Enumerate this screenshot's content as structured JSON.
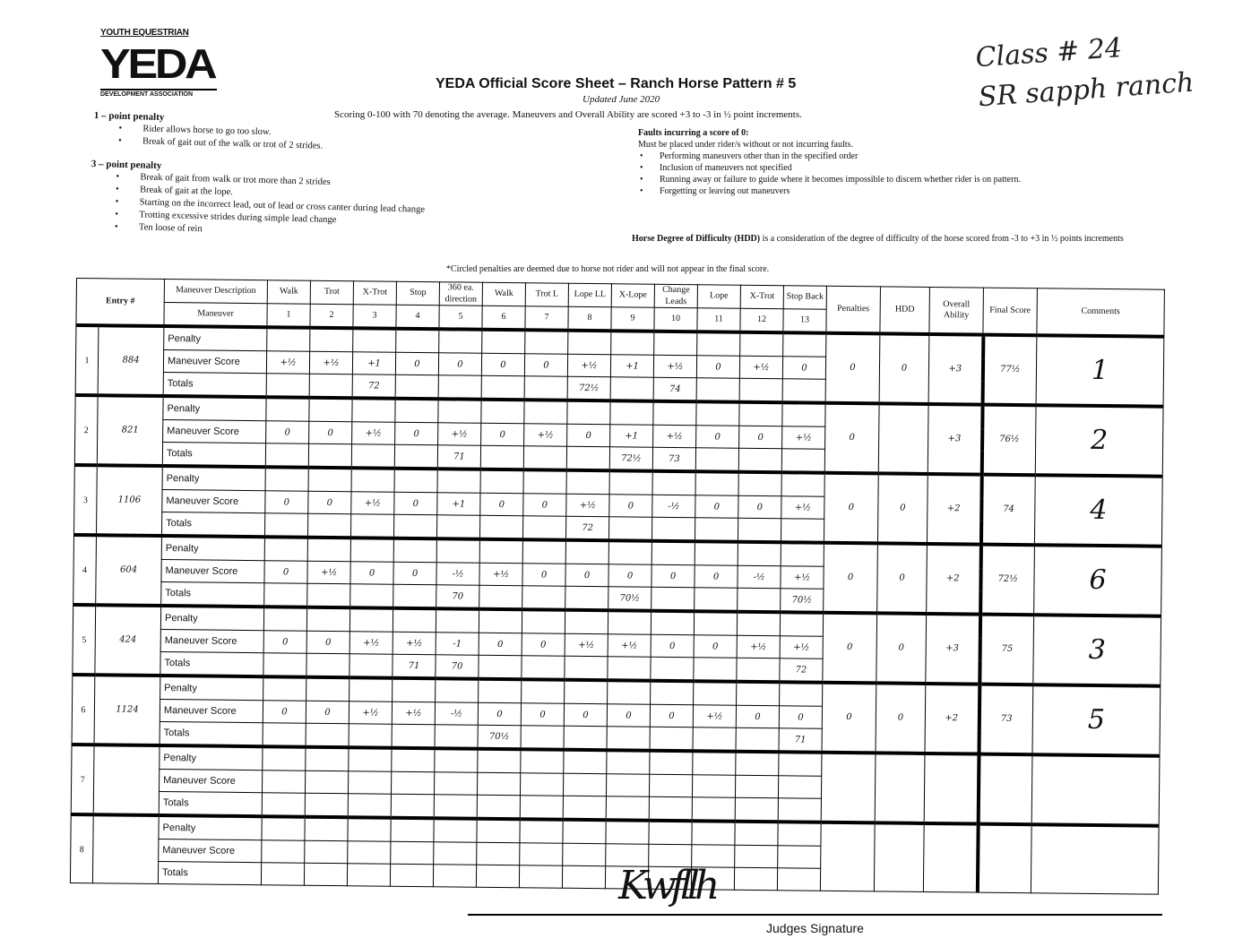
{
  "logo": {
    "top": "YOUTH EQUESTRIAN",
    "big": "YEDA",
    "bottom": "DEVELOPMENT ASSOCIATION"
  },
  "header": {
    "title": "YEDA Official Score Sheet – Ranch Horse Pattern # 5",
    "updated": "Updated June 2020",
    "scoring": "Scoring 0-100 with 70 denoting the average. Maneuvers and Overall Ability are scored +3 to -3 in ½ point increments."
  },
  "handwritten_note": {
    "line1": "Class # 24",
    "line2": "SR sapph ranch"
  },
  "penalties": {
    "one_point": {
      "heading": "1 – point penalty",
      "items": [
        "Rider allows horse to go too slow.",
        "Break of gait out of the walk or trot of 2 strides."
      ]
    },
    "three_point": {
      "heading": "3 – point penalty",
      "items": [
        "Break of gait from walk or trot more than 2 strides",
        "Break of gait at the lope.",
        "Starting on the incorrect lead, out of lead or cross canter during lead change",
        "Trotting excessive strides during simple lead change",
        "Ten loose of rein"
      ]
    }
  },
  "faults": {
    "heading": "Faults incurring a score of 0:",
    "sub": "Must be placed under rider/s without or not incurring faults.",
    "items": [
      "Performing maneuvers other than in the specified order",
      "Inclusion of maneuvers not specified",
      "Running away or failure to guide where it becomes impossible to discern whether rider is on pattern.",
      "Forgetting or leaving out maneuvers"
    ]
  },
  "hdd_note": {
    "bold": "Horse Degree of Difficulty (HDD)",
    "text": " is a consideration of the degree of difficulty of the horse scored from -3 to +3 in ½ points increments"
  },
  "circled_note": "*Circled penalties are deemed due to horse not rider and will not appear in the final score.",
  "table": {
    "entry_header": "Entry #",
    "desc_header": "Maneuver Description",
    "maneuver_header": "Maneuver",
    "maneuvers": [
      {
        "name": "Walk",
        "num": "1"
      },
      {
        "name": "Trot",
        "num": "2"
      },
      {
        "name": "X-Trot",
        "num": "3"
      },
      {
        "name": "Stop",
        "num": "4"
      },
      {
        "name": "360 ea. direction",
        "num": "5"
      },
      {
        "name": "Walk",
        "num": "6"
      },
      {
        "name": "Trot L",
        "num": "7"
      },
      {
        "name": "Lope LL",
        "num": "8"
      },
      {
        "name": "X-Lope",
        "num": "9"
      },
      {
        "name": "Change Leads",
        "num": "10"
      },
      {
        "name": "Lope",
        "num": "11"
      },
      {
        "name": "X-Trot",
        "num": "12"
      },
      {
        "name": "Stop Back",
        "num": "13"
      }
    ],
    "penalties_header": "Penalties",
    "hdd_header": "HDD",
    "overall_header": "Overall Ability",
    "final_header": "Final Score",
    "comments_header": "Comments",
    "row_labels": [
      "Penalty",
      "Maneuver Score",
      "Totals"
    ],
    "entries": [
      {
        "num": "1",
        "entry": "884",
        "scores": [
          "+½",
          "+½",
          "+1",
          "0",
          "0",
          "0",
          "0",
          "+½",
          "+1",
          "+½",
          "0",
          "+½",
          "0"
        ],
        "totals": [
          "",
          "",
          "72",
          "",
          "",
          "",
          "",
          "72½",
          "",
          "74",
          "",
          "",
          ""
        ],
        "penalties": "0",
        "hdd": "0",
        "overall": "+3",
        "final": "77½",
        "comment": "1"
      },
      {
        "num": "2",
        "entry": "821",
        "scores": [
          "0",
          "0",
          "+½",
          "0",
          "+½",
          "0",
          "+½",
          "0",
          "+1",
          "+½",
          "0",
          "0",
          "+½"
        ],
        "totals": [
          "",
          "",
          "",
          "",
          "71",
          "",
          "",
          "",
          "72½",
          "73",
          "",
          "",
          ""
        ],
        "penalties": "0",
        "hdd": "",
        "overall": "+3",
        "final": "76½",
        "comment": "2"
      },
      {
        "num": "3",
        "entry": "1106",
        "scores": [
          "0",
          "0",
          "+½",
          "0",
          "+1",
          "0",
          "0",
          "+½",
          "0",
          "-½",
          "0",
          "0",
          "+½"
        ],
        "totals": [
          "",
          "",
          "",
          "",
          "",
          "",
          "",
          "72",
          "",
          "",
          "",
          "",
          ""
        ],
        "penalties": "0",
        "hdd": "0",
        "overall": "+2",
        "final": "74",
        "comment": "4"
      },
      {
        "num": "4",
        "entry": "604",
        "scores": [
          "0",
          "+½",
          "0",
          "0",
          "-½",
          "+½",
          "0",
          "0",
          "0",
          "0",
          "0",
          "-½",
          "+½"
        ],
        "totals": [
          "",
          "",
          "",
          "",
          "70",
          "",
          "",
          "",
          "70½",
          "",
          "",
          "",
          "70½"
        ],
        "penalties": "0",
        "hdd": "0",
        "overall": "+2",
        "final": "72½",
        "comment": "6"
      },
      {
        "num": "5",
        "entry": "424",
        "scores": [
          "0",
          "0",
          "+½",
          "+½",
          "-1",
          "0",
          "0",
          "+½",
          "+½",
          "0",
          "0",
          "+½",
          "+½"
        ],
        "totals": [
          "",
          "",
          "",
          "71",
          "70",
          "",
          "",
          "",
          "",
          "",
          "",
          "",
          "72"
        ],
        "penalties": "0",
        "hdd": "0",
        "overall": "+3",
        "final": "75",
        "comment": "3"
      },
      {
        "num": "6",
        "entry": "1124",
        "scores": [
          "0",
          "0",
          "+½",
          "+½",
          "-½",
          "0",
          "0",
          "0",
          "0",
          "0",
          "+½",
          "0",
          "0"
        ],
        "totals": [
          "",
          "",
          "",
          "",
          "",
          "70½",
          "",
          "",
          "",
          "",
          "",
          "",
          "71"
        ],
        "penalties": "0",
        "hdd": "0",
        "overall": "+2",
        "final": "73",
        "comment": "5"
      },
      {
        "num": "7",
        "entry": "",
        "scores": [
          "",
          "",
          "",
          "",
          "",
          "",
          "",
          "",
          "",
          "",
          "",
          "",
          ""
        ],
        "totals": [
          "",
          "",
          "",
          "",
          "",
          "",
          "",
          "",
          "",
          "",
          "",
          "",
          ""
        ],
        "penalties": "",
        "hdd": "",
        "overall": "",
        "final": "",
        "comment": ""
      },
      {
        "num": "8",
        "entry": "",
        "scores": [
          "",
          "",
          "",
          "",
          "",
          "",
          "",
          "",
          "",
          "",
          "",
          "",
          ""
        ],
        "totals": [
          "",
          "",
          "",
          "",
          "",
          "",
          "",
          "",
          "",
          "",
          "",
          "",
          ""
        ],
        "penalties": "",
        "hdd": "",
        "overall": "",
        "final": "",
        "comment": ""
      }
    ]
  },
  "signature": {
    "label": "Judges Signature",
    "mark": "Kwfllh"
  }
}
